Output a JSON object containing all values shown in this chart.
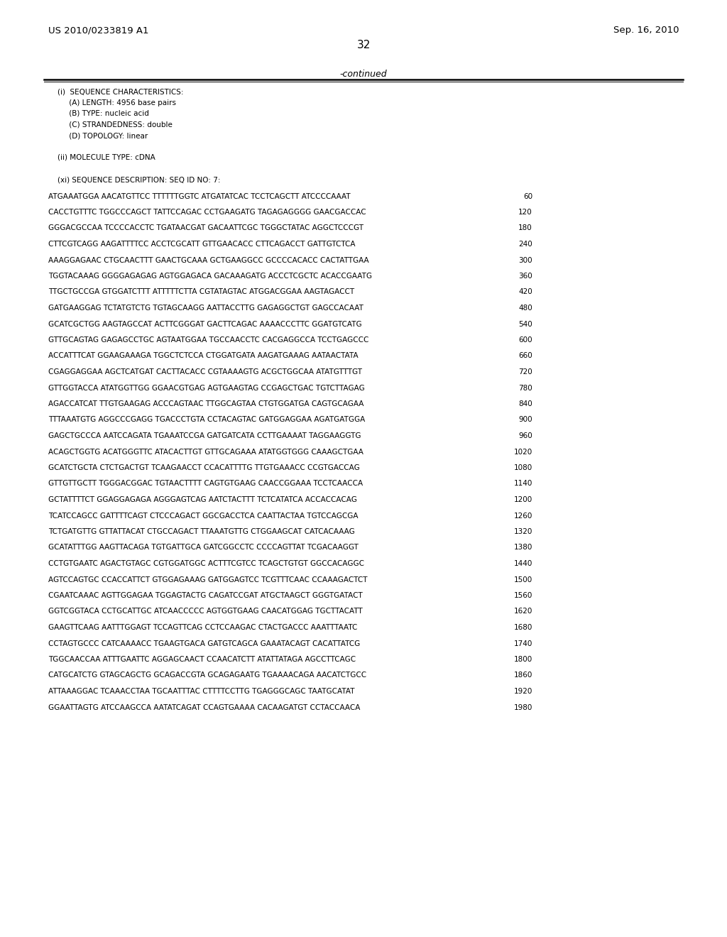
{
  "header_left": "US 2010/0233819 A1",
  "header_right": "Sep. 16, 2010",
  "page_number": "32",
  "continued_text": "-continued",
  "bg_color": "#ffffff",
  "text_color": "#000000",
  "sequence_info": [
    "    (i)  SEQUENCE CHARACTERISTICS:",
    "         (A) LENGTH: 4956 base pairs",
    "         (B) TYPE: nucleic acid",
    "         (C) STRANDEDNESS: double",
    "         (D) TOPOLOGY: linear",
    "",
    "    (ii) MOLECULE TYPE: cDNA",
    "",
    "    (xi) SEQUENCE DESCRIPTION: SEQ ID NO: 7:"
  ],
  "sequence_lines": [
    [
      "ATGAAATGGA AACATGTTCC TTTTTTGGTC ATGATATCAC TCCTCAGCTT ATCCCCAAAT",
      "60"
    ],
    [
      "CACCTGTTTC TGGCCCAGCT TATTCCAGAC CCTGAAGATG TAGAGAGGGG GAACGACCAC",
      "120"
    ],
    [
      "GGGACGCCAA TCCCCACCTC TGATAACGAT GACAATTCGC TGGGCTATAC AGGCTCCCGT",
      "180"
    ],
    [
      "CTTCGTCAGG AAGATTTTCC ACCTCGCATT GTTGAACACC CTTCAGACCT GATTGTCTCA",
      "240"
    ],
    [
      "AAAGGAGAAC CTGCAACTTT GAACTGCAAA GCTGAAGGCC GCCCCACACC CACTATTGAA",
      "300"
    ],
    [
      "TGGTACAAAG GGGGAGAGAG AGTGGAGACA GACAAAGATG ACCCTCGCTC ACACCGAATG",
      "360"
    ],
    [
      "TTGCTGCCGA GTGGATCTTT ATTTTTCTTA CGTATAGTAC ATGGACGGAA AAGTAGACCT",
      "420"
    ],
    [
      "GATGAAGGAG TCTATGTCTG TGTAGCAAGG AATTACCTTG GAGAGGCTGT GAGCCACAAT",
      "480"
    ],
    [
      "GCATCGCTGG AAGTAGCCAT ACTTCGGGAT GACTTCAGAC AAAACCCTTC GGATGTCATG",
      "540"
    ],
    [
      "GTTGCAGTAG GAGAGCCTGC AGTAATGGAA TGCCAACCTC CACGAGGCCA TCCTGAGCCC",
      "600"
    ],
    [
      "ACCATTTCAT GGAAGAAAGA TGGCTCTCCA CTGGATGATA AAGATGAAAG AATAACTATA",
      "660"
    ],
    [
      "CGAGGAGGAA AGCTCATGAT CACTTACACC CGTAAAAGTG ACGCTGGCAA ATATGTTTGT",
      "720"
    ],
    [
      "GTTGGTACCA ATATGGTTGG GGAACGTGAG AGTGAAGTAG CCGAGCTGAC TGTCTTAGAG",
      "780"
    ],
    [
      "AGACCATCAT TTGTGAAGAG ACCCAGTAAC TTGGCAGTAA CTGTGGATGA CAGTGCAGAA",
      "840"
    ],
    [
      "TTTAAATGTG AGGCCCGAGG TGACCCTGTA CCTACAGTAC GATGGAGGAA AGATGATGGA",
      "900"
    ],
    [
      "GAGCTGCCCA AATCCAGATA TGAAATCCGA GATGATCATA CCTTGAAAAT TAGGAAGGTG",
      "960"
    ],
    [
      "ACAGCTGGTG ACATGGGTTC ATACACTTGT GTTGCAGAAA ATATGGTGGG CAAAGCTGAA",
      "1020"
    ],
    [
      "GCATCTGCTA CTCTGACTGT TCAAGAACCT CCACATTTTG TTGTGAAACC CCGTGACCAG",
      "1080"
    ],
    [
      "GTTGTTGCTT TGGGACGGAC TGTAACTTTT CAGTGTGAAG CAACCGGAAA TCCTCAACCA",
      "1140"
    ],
    [
      "GCTATTTTCT GGAGGAGAGA AGGGAGTCAG AATCTACTTT TCTCATATCA ACCACCACAG",
      "1200"
    ],
    [
      "TCATCCAGCC GATTTTCAGT CTCCCAGACT GGCGACCTCA CAATTACTAA TGTCCAGCGA",
      "1260"
    ],
    [
      "TCTGATGTTG GTTATTACAT CTGCCAGACT TTAAATGTTG CTGGAAGCAT CATCACAAAG",
      "1320"
    ],
    [
      "GCATATTTGG AAGTTACAGA TGTGATTGCA GATCGGCCTC CCCCAGTTAT TCGACAAGGT",
      "1380"
    ],
    [
      "CCTGTGAATC AGACTGTAGC CGTGGATGGC ACTTTCGTCC TCAGCTGTGT GGCCACAGGC",
      "1440"
    ],
    [
      "AGTCCAGTGC CCACCATTCT GTGGAGAAAG GATGGAGTCC TCGTTTCAAC CCAAAGACTCT",
      "1500"
    ],
    [
      "CGAATCAAAC AGTTGGAGAA TGGAGTACTG CAGATCCGAT ATGCTAAGCT GGGTGATACT",
      "1560"
    ],
    [
      "GGTCGGTACA CCTGCATTGC ATCAACCCCC AGTGGTGAAG CAACATGGAG TGCTTACATT",
      "1620"
    ],
    [
      "GAAGTTCAAG AATTTGGAGT TCCAGTTCAG CCTCCAAGAC CTACTGACCC AAATTTAATC",
      "1680"
    ],
    [
      "CCTAGTGCCC CATCAAAACC TGAAGTGACA GATGTCAGCA GAAATACAGT CACATTATCG",
      "1740"
    ],
    [
      "TGGCAACCAA ATTTGAATTC AGGAGCAACT CCAACATCTT ATATTATAGA AGCCTTCAGC",
      "1800"
    ],
    [
      "CATGCATCTG GTAGCAGCTG GCAGACCGTA GCAGAGAATG TGAAAACAGA AACATCTGCC",
      "1860"
    ],
    [
      "ATTAAAGGAC TCAAACCTAA TGCAATTTAC CTTTTCCTTG TGAGGGCAGC TAATGCATAT",
      "1920"
    ],
    [
      "GGAATTAGTG ATCCAAGCCA AATATCAGAT CCAGTGAAAA CACAAGATGT CCTACCAACA",
      "1980"
    ]
  ]
}
